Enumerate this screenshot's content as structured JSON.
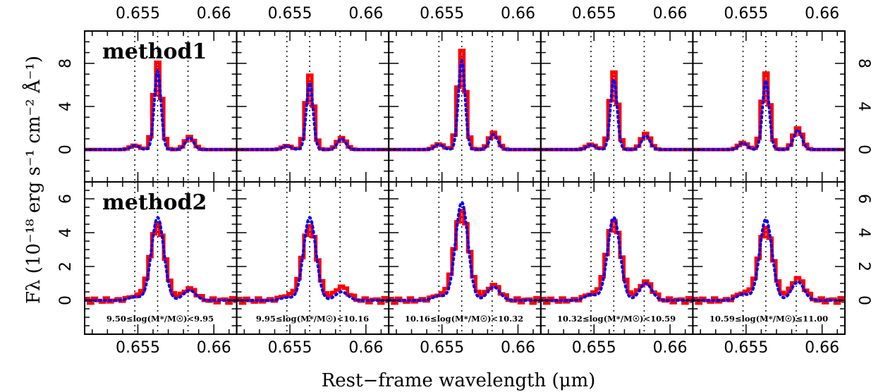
{
  "chart_data": {
    "type": "line",
    "xlabel": "Rest−frame wavelength (μm)",
    "ylabel": "Fλ (10⁻¹⁸ erg s⁻¹ cm⁻² Å⁻¹)",
    "xlim": [
      0.6515,
      0.6615
    ],
    "xticks": [
      0.655,
      0.66
    ],
    "xtick_labels": [
      "0.655",
      "0.66"
    ],
    "reference_lines": [
      0.6548,
      0.6563,
      0.6583
    ],
    "line_colors": {
      "method_red": "#ff0000",
      "method_blue": "#0000ff"
    },
    "grid": false,
    "mass_bins": [
      "9.50≤log(M*/M☉)<9.95",
      "9.95≤log(M*/M☉)<10.16",
      "10.16≤log(M*/M☉)<10.32",
      "10.32≤log(M*/M☉)<10.59",
      "10.59≤log(M*/M☉)≤11.00"
    ],
    "rows": [
      {
        "label": "method1",
        "ylim": [
          -3,
          11
        ],
        "yticks": [
          0,
          4,
          8
        ],
        "ytick_labels": [
          "0",
          "4",
          "8"
        ],
        "panels": [
          {
            "halpha_peak": 8.1,
            "nii_peak": 1.2,
            "blue_halpha_peak": 7.3,
            "blue_nii_peak": 1.1
          },
          {
            "halpha_peak": 6.9,
            "nii_peak": 1.1,
            "blue_halpha_peak": 6.2,
            "blue_nii_peak": 1.0
          },
          {
            "halpha_peak": 9.2,
            "nii_peak": 1.6,
            "blue_halpha_peak": 8.2,
            "blue_nii_peak": 1.4
          },
          {
            "halpha_peak": 7.2,
            "nii_peak": 1.5,
            "blue_halpha_peak": 6.5,
            "blue_nii_peak": 1.3
          },
          {
            "halpha_peak": 7.1,
            "nii_peak": 2.0,
            "blue_halpha_peak": 6.4,
            "blue_nii_peak": 1.8
          }
        ]
      },
      {
        "label": "method2",
        "ylim": [
          -2,
          7
        ],
        "yticks": [
          0,
          2,
          4,
          6
        ],
        "ytick_labels": [
          "0",
          "2",
          "4",
          "6"
        ],
        "panels": [
          {
            "halpha_peak": 4.5,
            "nii_peak": 0.7,
            "blue_halpha_peak": 4.9,
            "blue_nii_peak": 0.6
          },
          {
            "halpha_peak": 4.4,
            "nii_peak": 0.8,
            "blue_halpha_peak": 4.9,
            "blue_nii_peak": 0.5
          },
          {
            "halpha_peak": 5.3,
            "nii_peak": 0.9,
            "blue_halpha_peak": 5.8,
            "blue_nii_peak": 0.8
          },
          {
            "halpha_peak": 4.7,
            "nii_peak": 1.1,
            "blue_halpha_peak": 4.9,
            "blue_nii_peak": 1.0
          },
          {
            "halpha_peak": 4.3,
            "nii_peak": 1.3,
            "blue_halpha_peak": 4.8,
            "blue_nii_peak": 1.1
          }
        ]
      }
    ]
  }
}
